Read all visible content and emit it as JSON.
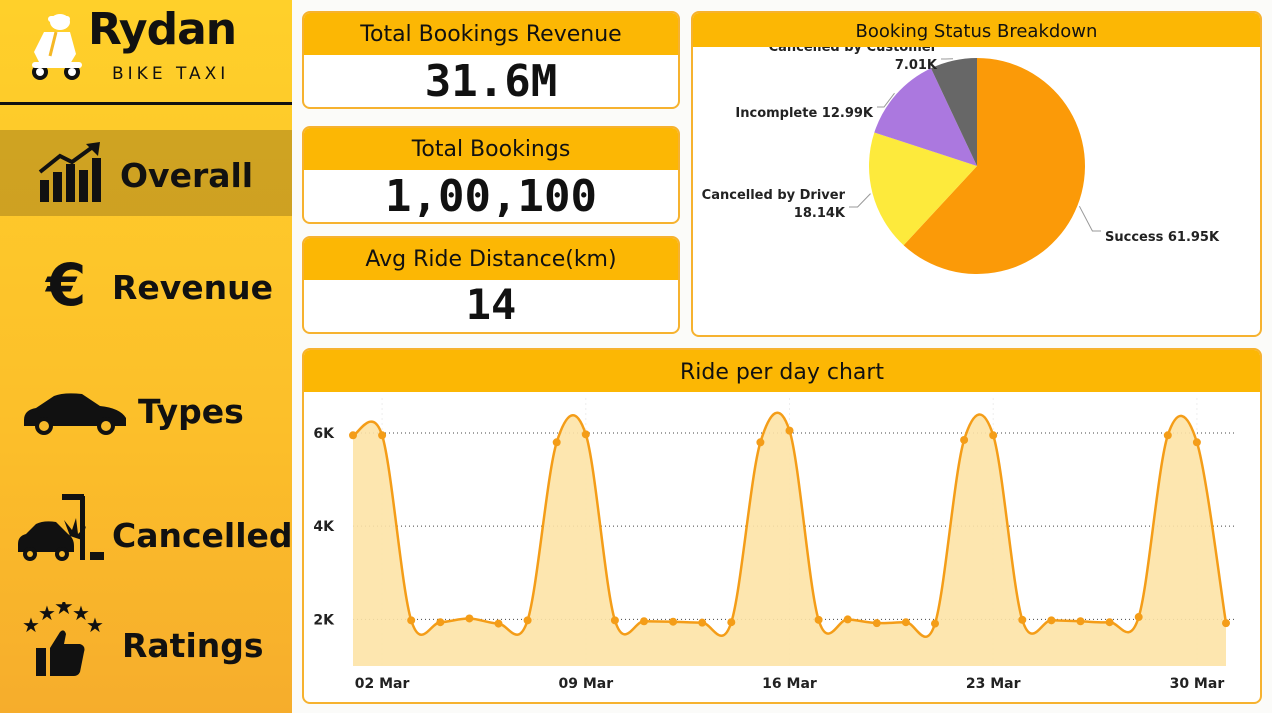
{
  "brand": {
    "name": "Rydan",
    "tagline": "BIKE TAXI"
  },
  "nav": {
    "items": [
      {
        "label": "Overall",
        "icon": "bar-chart-growth-icon",
        "active": true
      },
      {
        "label": "Revenue",
        "icon": "euro-icon",
        "active": false
      },
      {
        "label": "Types",
        "icon": "car-icon",
        "active": false
      },
      {
        "label": "Cancelled",
        "icon": "car-crash-icon",
        "active": false
      },
      {
        "label": "Ratings",
        "icon": "thumbs-up-stars-icon",
        "active": false
      }
    ]
  },
  "kpis": {
    "revenue": {
      "label": "Total Bookings Revenue",
      "value": "31.6M"
    },
    "bookings": {
      "label": "Total Bookings",
      "value": "1,00,100"
    },
    "distance": {
      "label": "Avg Ride Distance(km)",
      "value": "14"
    }
  },
  "colors": {
    "accent": "#fcb704",
    "card_border": "#f6b22f",
    "sidebar": "#fdc62b",
    "line": "#f49d18",
    "area": "#fde3a6"
  },
  "chart_data": [
    {
      "type": "pie",
      "title": "Booking Status Breakdown",
      "categories": [
        "Success",
        "Cancelled by Driver",
        "Incomplete",
        "Cancelled by Customer"
      ],
      "values": [
        61950,
        18140,
        12990,
        7010
      ],
      "display_values": [
        "61.95K",
        "18.14K",
        "12.99K",
        "7.01K"
      ],
      "colors": [
        "#fb9a08",
        "#fdea3c",
        "#ab78df",
        "#676767"
      ]
    },
    {
      "type": "area",
      "title": "Ride per day chart",
      "xlabel": "",
      "ylabel": "",
      "x": [
        "01 Mar",
        "02 Mar",
        "03 Mar",
        "04 Mar",
        "05 Mar",
        "06 Mar",
        "07 Mar",
        "08 Mar",
        "09 Mar",
        "10 Mar",
        "11 Mar",
        "12 Mar",
        "13 Mar",
        "14 Mar",
        "15 Mar",
        "16 Mar",
        "17 Mar",
        "18 Mar",
        "19 Mar",
        "20 Mar",
        "21 Mar",
        "22 Mar",
        "23 Mar",
        "24 Mar",
        "25 Mar",
        "26 Mar",
        "27 Mar",
        "28 Mar",
        "29 Mar",
        "30 Mar",
        "31 Mar"
      ],
      "values": [
        5950,
        5950,
        1980,
        1940,
        2020,
        1910,
        1980,
        5800,
        5970,
        1980,
        1960,
        1950,
        1930,
        1940,
        5800,
        6050,
        1990,
        2000,
        1920,
        1940,
        1910,
        5850,
        5950,
        1990,
        1980,
        1960,
        1940,
        2050,
        5950,
        5800,
        1920
      ],
      "x_ticks": [
        "02 Mar",
        "09 Mar",
        "16 Mar",
        "23 Mar",
        "30 Mar"
      ],
      "y_ticks": [
        "2K",
        "4K",
        "6K"
      ],
      "ylim": [
        1000,
        6750
      ],
      "grid": true
    }
  ]
}
